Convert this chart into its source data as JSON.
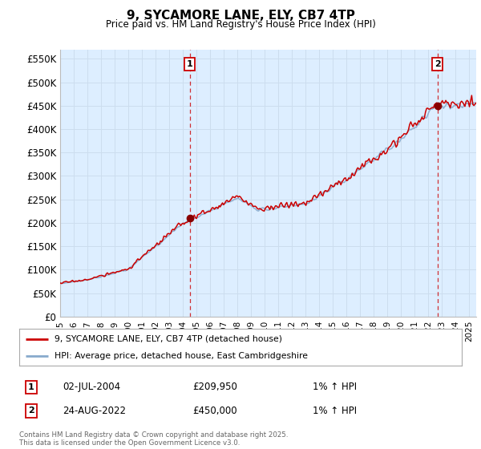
{
  "title": "9, SYCAMORE LANE, ELY, CB7 4TP",
  "subtitle": "Price paid vs. HM Land Registry's House Price Index (HPI)",
  "ylabel_ticks": [
    "£0",
    "£50K",
    "£100K",
    "£150K",
    "£200K",
    "£250K",
    "£300K",
    "£350K",
    "£400K",
    "£450K",
    "£500K",
    "£550K"
  ],
  "ytick_values": [
    0,
    50000,
    100000,
    150000,
    200000,
    250000,
    300000,
    350000,
    400000,
    450000,
    500000,
    550000
  ],
  "ylim": [
    0,
    570000
  ],
  "xlim_start": 1995.0,
  "xlim_end": 2025.5,
  "sale1_x": 2004.5,
  "sale1_y": 209950,
  "sale1_label": "1",
  "sale2_x": 2022.65,
  "sale2_y": 450000,
  "sale2_label": "2",
  "legend_line1": "9, SYCAMORE LANE, ELY, CB7 4TP (detached house)",
  "legend_line2": "HPI: Average price, detached house, East Cambridgeshire",
  "annotation1_date": "02-JUL-2004",
  "annotation1_price": "£209,950",
  "annotation1_hpi": "1% ↑ HPI",
  "annotation2_date": "24-AUG-2022",
  "annotation2_price": "£450,000",
  "annotation2_hpi": "1% ↑ HPI",
  "footer": "Contains HM Land Registry data © Crown copyright and database right 2025.\nThis data is licensed under the Open Government Licence v3.0.",
  "line_color_red": "#cc0000",
  "line_color_blue": "#88aacc",
  "fill_color": "#ddeeff",
  "bg_color": "#ffffff",
  "grid_color": "#ccddee",
  "sale_marker_color": "#880000",
  "annotation_box_color": "#cc0000",
  "xtick_years": [
    1995,
    1996,
    1997,
    1998,
    1999,
    2000,
    2001,
    2002,
    2003,
    2004,
    2005,
    2006,
    2007,
    2008,
    2009,
    2010,
    2011,
    2012,
    2013,
    2014,
    2015,
    2016,
    2017,
    2018,
    2019,
    2020,
    2021,
    2022,
    2023,
    2024,
    2025
  ]
}
